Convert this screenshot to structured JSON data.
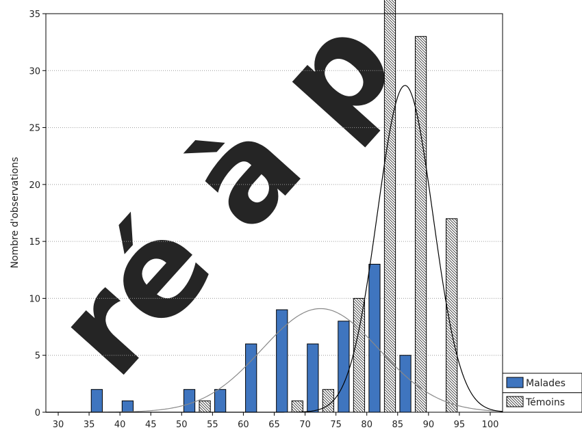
{
  "chart_data": {
    "type": "bar",
    "title": "",
    "xlabel": "",
    "ylabel": "Nombre d'observations",
    "x_ticks": [
      "30",
      "35",
      "40",
      "45",
      "50",
      "55",
      "60",
      "65",
      "70",
      "75",
      "80",
      "85",
      "90",
      "95",
      "100"
    ],
    "y_ticks": [
      "0",
      "5",
      "10",
      "15",
      "20",
      "25",
      "30",
      "35"
    ],
    "xlim": [
      28,
      102
    ],
    "ylim": [
      0,
      35
    ],
    "grid": "horizontal dotted",
    "legend_position": "bottom-right outside",
    "bin_centers": [
      37.5,
      42.5,
      47.5,
      52.5,
      57.5,
      62.5,
      67.5,
      72.5,
      77.5,
      82.5,
      87.5,
      92.5
    ],
    "series": [
      {
        "name": "Malades",
        "color": "#3f75bf",
        "pattern": "solid",
        "values": [
          2,
          1,
          0,
          2,
          2,
          6,
          9,
          6,
          8,
          13,
          5,
          0
        ]
      },
      {
        "name": "Témoins",
        "color": "#ffffff",
        "pattern": "hatched",
        "values": [
          0,
          0,
          0,
          1,
          0,
          0,
          1,
          2,
          10,
          37,
          33,
          17
        ]
      }
    ],
    "curves": [
      {
        "series": "Malades",
        "type": "normal",
        "mean": 72.5,
        "sd": 9.5,
        "peak": 9.1,
        "color": "#888888"
      },
      {
        "series": "Témoins",
        "type": "normal",
        "mean": 86.2,
        "sd": 4.5,
        "peak": 28.7,
        "color": "#000000"
      }
    ]
  },
  "watermark": "ré à p"
}
